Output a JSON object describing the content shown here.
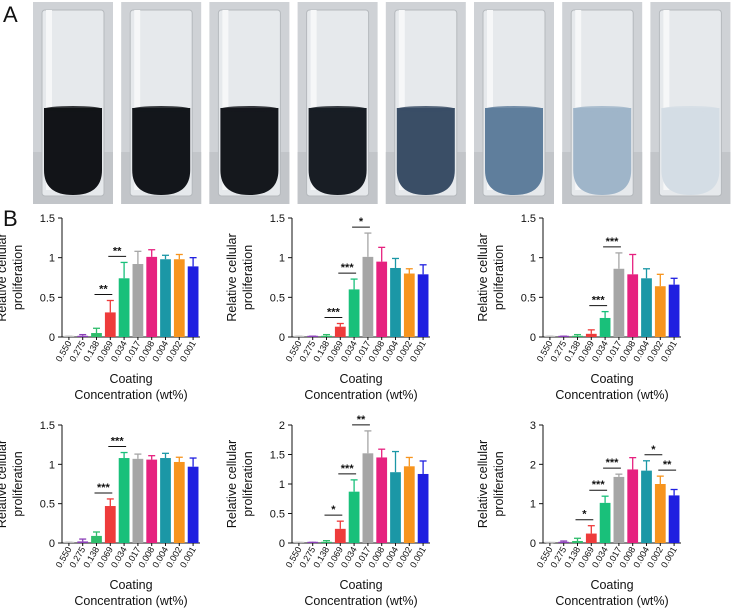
{
  "figure": {
    "panel_a_label": "A",
    "panel_b_label": "B"
  },
  "photos": {
    "tube_count": 8,
    "liquid_colors": [
      "#121418",
      "#13161b",
      "#15181d",
      "#181d24",
      "#3a4e66",
      "#5f7e9c",
      "#9fb5c9",
      "#d4dde5"
    ],
    "background_color": "#cfd2d6"
  },
  "chart_data": [
    {
      "type": "bar",
      "categories": [
        "0.550",
        "0.275",
        "0.138",
        "0.069",
        "0.034",
        "0.017",
        "0.008",
        "0.004",
        "0.002",
        "0.001"
      ],
      "values": [
        0.0,
        0.01,
        0.05,
        0.31,
        0.74,
        0.92,
        1.01,
        0.98,
        0.98,
        0.89
      ],
      "errors": [
        0.01,
        0.02,
        0.06,
        0.15,
        0.2,
        0.16,
        0.09,
        0.05,
        0.06,
        0.11
      ],
      "xlabel": "Coating\nConcentration (wt%)",
      "ylabel": "Relative cellular\nproliferation",
      "ylim": [
        0,
        1.5
      ],
      "yticks": [
        "0",
        "0.5",
        "1",
        "1.5"
      ],
      "significance": [
        {
          "from": 2,
          "to": 3,
          "label": "**"
        },
        {
          "from": 3,
          "to": 4,
          "label": "**"
        }
      ]
    },
    {
      "type": "bar",
      "categories": [
        "0.550",
        "0.275",
        "0.138",
        "0.069",
        "0.034",
        "0.017",
        "0.008",
        "0.004",
        "0.002",
        "0.001"
      ],
      "values": [
        0.0,
        0.0,
        0.01,
        0.13,
        0.6,
        1.01,
        0.95,
        0.87,
        0.8,
        0.79
      ],
      "errors": [
        0.01,
        0.01,
        0.02,
        0.04,
        0.13,
        0.3,
        0.18,
        0.12,
        0.06,
        0.12
      ],
      "xlabel": "Coating\nConcentration (wt%)",
      "ylabel": "Relative cellular\nproliferation",
      "ylim": [
        0,
        1.5
      ],
      "yticks": [
        "0",
        "0.5",
        "1",
        "1.5"
      ],
      "significance": [
        {
          "from": 2,
          "to": 3,
          "label": "***"
        },
        {
          "from": 3,
          "to": 4,
          "label": "***"
        },
        {
          "from": 4,
          "to": 5,
          "label": "*"
        }
      ]
    },
    {
      "type": "bar",
      "categories": [
        "0.550",
        "0.275",
        "0.138",
        "0.069",
        "0.034",
        "0.017",
        "0.008",
        "0.004",
        "0.002",
        "0.001"
      ],
      "values": [
        0.0,
        0.0,
        0.01,
        0.04,
        0.24,
        0.86,
        0.79,
        0.74,
        0.64,
        0.66
      ],
      "errors": [
        0.01,
        0.01,
        0.02,
        0.05,
        0.08,
        0.2,
        0.25,
        0.12,
        0.15,
        0.08
      ],
      "xlabel": "Coating\nConcentration (wt%)",
      "ylabel": "Relative cellular\nproliferation",
      "ylim": [
        0,
        1.5
      ],
      "yticks": [
        "0",
        "0.5",
        "1",
        "1.5"
      ],
      "significance": [
        {
          "from": 3,
          "to": 4,
          "label": "***"
        },
        {
          "from": 4,
          "to": 5,
          "label": "***"
        }
      ]
    },
    {
      "type": "bar",
      "categories": [
        "0.550",
        "0.275",
        "0.138",
        "0.069",
        "0.034",
        "0.017",
        "0.008",
        "0.004",
        "0.002",
        "0.001"
      ],
      "values": [
        0.0,
        0.02,
        0.09,
        0.47,
        1.08,
        1.07,
        1.06,
        1.08,
        1.03,
        0.97
      ],
      "errors": [
        0.01,
        0.03,
        0.05,
        0.09,
        0.07,
        0.06,
        0.05,
        0.06,
        0.06,
        0.11
      ],
      "xlabel": "Coating\nConcentration (wt%)",
      "ylabel": "Relative cellular\nproliferation",
      "ylim": [
        0,
        1.5
      ],
      "yticks": [
        "0",
        "0.5",
        "1",
        "1.5"
      ],
      "significance": [
        {
          "from": 2,
          "to": 3,
          "label": "***"
        },
        {
          "from": 3,
          "to": 4,
          "label": "***"
        }
      ]
    },
    {
      "type": "bar",
      "categories": [
        "0.550",
        "0.275",
        "0.138",
        "0.069",
        "0.034",
        "0.017",
        "0.008",
        "0.004",
        "0.002",
        "0.001"
      ],
      "values": [
        0.0,
        0.0,
        0.02,
        0.24,
        0.87,
        1.52,
        1.45,
        1.2,
        1.3,
        1.17
      ],
      "errors": [
        0.01,
        0.01,
        0.02,
        0.13,
        0.2,
        0.38,
        0.14,
        0.35,
        0.15,
        0.22
      ],
      "xlabel": "Coating\nConcentration (wt%)",
      "ylabel": "Relative cellular\nproliferation",
      "ylim": [
        0,
        2
      ],
      "yticks": [
        "0",
        "0.5",
        "1",
        "1.5",
        "2"
      ],
      "significance": [
        {
          "from": 2,
          "to": 3,
          "label": "*"
        },
        {
          "from": 3,
          "to": 4,
          "label": "***"
        },
        {
          "from": 4,
          "to": 5,
          "label": "**"
        }
      ]
    },
    {
      "type": "bar",
      "categories": [
        "0.550",
        "0.275",
        "0.138",
        "0.069",
        "0.034",
        "0.017",
        "0.008",
        "0.004",
        "0.002",
        "0.001"
      ],
      "values": [
        0.0,
        0.02,
        0.05,
        0.24,
        1.02,
        1.68,
        1.87,
        1.84,
        1.5,
        1.21
      ],
      "errors": [
        0.01,
        0.03,
        0.07,
        0.2,
        0.17,
        0.07,
        0.3,
        0.25,
        0.2,
        0.15
      ],
      "xlabel": "Coating\nConcentration (wt%)",
      "ylabel": "Relative cellular\nproliferation",
      "ylim": [
        0,
        3
      ],
      "yticks": [
        "0",
        "1",
        "2",
        "3"
      ],
      "significance": [
        {
          "from": 2,
          "to": 3,
          "label": "*"
        },
        {
          "from": 3,
          "to": 4,
          "label": "***"
        },
        {
          "from": 4,
          "to": 5,
          "label": "***"
        },
        {
          "from": 7,
          "to": 8,
          "label": "*"
        },
        {
          "from": 8,
          "to": 9,
          "label": "**"
        }
      ]
    }
  ],
  "bar_colors": [
    "#bdbdbd",
    "#8b3fb8",
    "#2ebd6b",
    "#ee3b3b",
    "#19c07a",
    "#a6a6a6",
    "#e6217f",
    "#1b97a6",
    "#f7941d",
    "#1f1fe0"
  ]
}
